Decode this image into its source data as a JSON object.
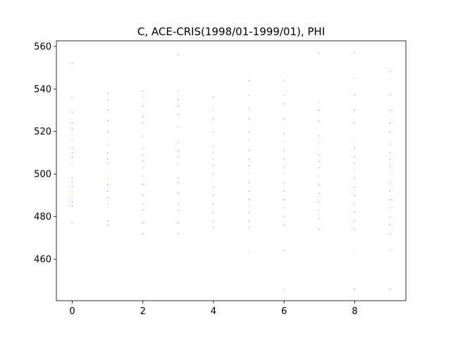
{
  "chart_data": {
    "type": "scatter",
    "title": "C, ACE-CRIS(1998/01-1999/01), PHI",
    "xlim": [
      -0.45,
      9.45
    ],
    "xticks": [
      0,
      2,
      4,
      6,
      8
    ],
    "ylim": [
      440.5,
      562.6
    ],
    "yticks": [
      460,
      480,
      500,
      520,
      540,
      560
    ],
    "series": [
      {
        "color": "#1f77b4",
        "x": [
          0,
          0,
          0,
          0,
          0,
          1,
          1,
          1,
          1,
          2,
          2,
          2,
          2,
          2,
          3,
          3,
          3,
          3,
          3,
          4,
          4,
          4,
          4,
          5,
          5,
          5,
          5,
          5,
          6,
          6,
          6,
          6,
          6,
          7,
          7,
          7,
          7,
          8,
          8,
          8,
          8,
          8,
          9,
          9,
          9,
          9,
          9
        ],
        "values": [
          552,
          521,
          508,
          494,
          477,
          538,
          520,
          505,
          489,
          539,
          524,
          506,
          490,
          472,
          556,
          528,
          508,
          491,
          472,
          536,
          513,
          500,
          486,
          544,
          520,
          504,
          488,
          475,
          544,
          519,
          503,
          488,
          464,
          557,
          518,
          503,
          487,
          557,
          524,
          505,
          490,
          474,
          548,
          520,
          504,
          488,
          472
        ]
      },
      {
        "color": "#ff7f0e",
        "x": [
          0,
          0,
          0,
          0,
          1,
          1,
          1,
          1,
          2,
          2,
          2,
          2,
          3,
          3,
          3,
          3,
          4,
          4,
          4,
          4,
          5,
          5,
          5,
          5,
          5,
          6,
          6,
          6,
          6,
          6,
          7,
          7,
          7,
          7,
          8,
          8,
          8,
          8,
          8,
          9,
          9,
          9,
          9,
          9
        ],
        "values": [
          536,
          516,
          505,
          490,
          535,
          514,
          498,
          486,
          536,
          518,
          503,
          486,
          539,
          522,
          505,
          486,
          530,
          510,
          497,
          482,
          537,
          516,
          500,
          485,
          463,
          537,
          515,
          500,
          484,
          446,
          534,
          514,
          499,
          483,
          545,
          517,
          502,
          486,
          463,
          537,
          514,
          500,
          484,
          464
        ]
      },
      {
        "color": "#2ca02c",
        "x": [
          0,
          0,
          0,
          0,
          1,
          1,
          1,
          1,
          2,
          2,
          2,
          2,
          3,
          3,
          3,
          3,
          4,
          4,
          4,
          4,
          5,
          5,
          5,
          5,
          6,
          6,
          6,
          6,
          7,
          7,
          7,
          7,
          8,
          8,
          8,
          8,
          8,
          9,
          9,
          9,
          9,
          9
        ],
        "values": [
          529,
          512,
          498,
          487,
          530,
          510,
          495,
          478,
          532,
          512,
          499,
          483,
          535,
          515,
          498,
          483,
          526,
          507,
          494,
          478,
          531,
          511,
          496,
          482,
          533,
          511,
          496,
          480,
          530,
          509,
          495,
          479,
          537,
          512,
          498,
          482,
          446,
          530,
          510,
          496,
          480,
          446
        ]
      },
      {
        "color": "#d62728",
        "x": [
          0,
          0,
          0,
          0,
          1,
          1,
          1,
          1,
          2,
          2,
          2,
          2,
          3,
          3,
          3,
          3,
          4,
          4,
          4,
          4,
          5,
          5,
          5,
          5,
          6,
          6,
          6,
          6,
          7,
          7,
          7,
          7,
          8,
          8,
          8,
          8,
          9,
          9,
          9,
          9
        ],
        "values": [
          524,
          510,
          496,
          485,
          525,
          507,
          492,
          476,
          527,
          509,
          495,
          477,
          532,
          511,
          496,
          477,
          520,
          504,
          490,
          475,
          526,
          507,
          492,
          478,
          526,
          507,
          492,
          476,
          525,
          506,
          491,
          474,
          530,
          508,
          494,
          478,
          524,
          507,
          492,
          476
        ]
      }
    ]
  }
}
